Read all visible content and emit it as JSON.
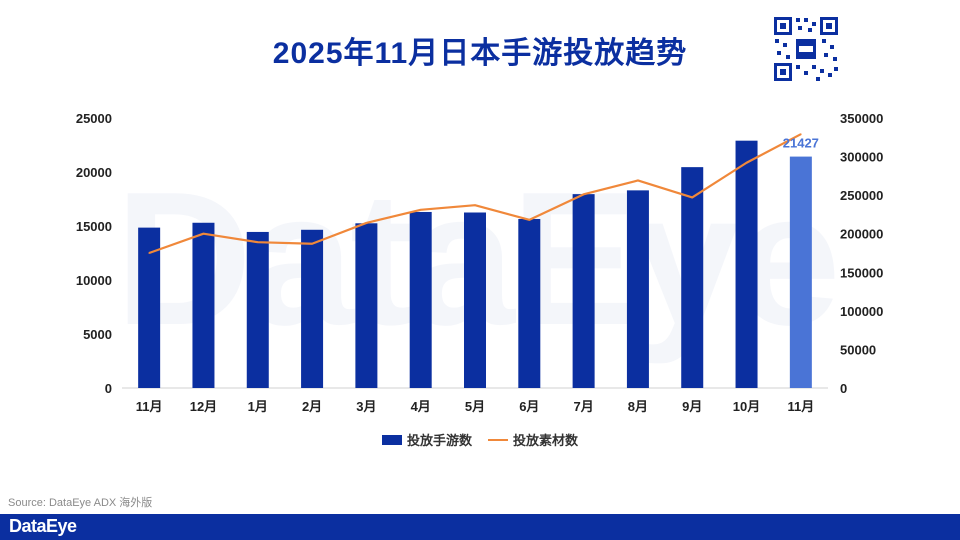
{
  "title": "2025年11月日本手游投放趋势",
  "source": "Source: DataEye ADX 海外版",
  "footer_logo": "DataEye",
  "watermark": "DataEye",
  "colors": {
    "bar": "#0b2fa0",
    "bar_highlight": "#4a74d6",
    "line": "#f0883a",
    "footer": "#0b2fa0"
  },
  "chart_data": {
    "type": "bar",
    "categories": [
      "11月",
      "12月",
      "1月",
      "2月",
      "3月",
      "4月",
      "5月",
      "6月",
      "7月",
      "8月",
      "9月",
      "10月",
      "11月"
    ],
    "series": [
      {
        "name": "投放手游数",
        "type": "bar",
        "axis": "left",
        "values": [
          14850,
          15300,
          14450,
          14650,
          15250,
          16300,
          16250,
          15650,
          17950,
          18300,
          20450,
          22900,
          21427
        ]
      },
      {
        "name": "投放素材数",
        "type": "line",
        "axis": "right",
        "values": [
          175000,
          200000,
          189000,
          187000,
          214000,
          231000,
          237000,
          218000,
          251000,
          269000,
          247000,
          292000,
          329000
        ]
      }
    ],
    "data_labels": [
      {
        "category_index": 12,
        "series": 0,
        "text": "21427"
      }
    ],
    "y_left": {
      "min": 0,
      "max": 25000,
      "ticks": [
        0,
        5000,
        10000,
        15000,
        20000,
        25000
      ]
    },
    "y_right": {
      "min": 0,
      "max": 350000,
      "ticks": [
        0,
        50000,
        100000,
        150000,
        200000,
        250000,
        300000,
        350000
      ]
    },
    "highlight_index": 12,
    "legend": "bottom-center",
    "grid": false
  }
}
